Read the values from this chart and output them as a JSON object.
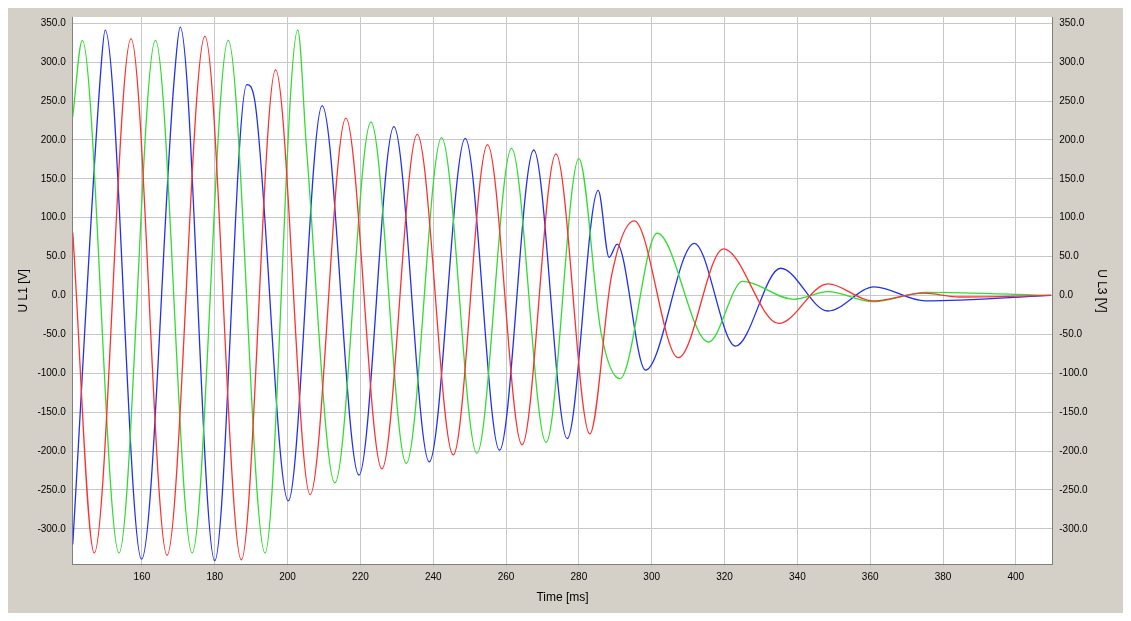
{
  "chart_data": {
    "type": "line",
    "xlabel": "Time [ms]",
    "ylabel": "U L1 [V]",
    "y2label": "U L3 [V]",
    "xlim": [
      141,
      410
    ],
    "xticks": [
      160,
      180,
      200,
      220,
      240,
      260,
      280,
      300,
      320,
      340,
      360,
      380,
      400
    ],
    "ylim": [
      -346,
      358
    ],
    "yticks": [
      {
        "value": 350,
        "label": "350.0"
      },
      {
        "value": 300,
        "label": "300.0"
      },
      {
        "value": 250,
        "label": "250.0"
      },
      {
        "value": 200,
        "label": "200.0"
      },
      {
        "value": 150,
        "label": "150.0"
      },
      {
        "value": 100,
        "label": "100.0"
      },
      {
        "value": 50,
        "label": "50.0"
      },
      {
        "value": 0,
        "label": "0.0"
      },
      {
        "value": -50,
        "label": "-50.0"
      },
      {
        "value": -100,
        "label": "-100.0"
      },
      {
        "value": -150,
        "label": "-150.0"
      },
      {
        "value": -200,
        "label": "-200.0"
      },
      {
        "value": -250,
        "label": "-250.0"
      },
      {
        "value": -300,
        "label": "-300.0"
      }
    ],
    "y2lim": [
      -346,
      358
    ],
    "y2ticks": [
      {
        "value": 350,
        "label": "350.0"
      },
      {
        "value": 300,
        "label": "300.0"
      },
      {
        "value": 250,
        "label": "250.0"
      },
      {
        "value": 200,
        "label": "200.0"
      },
      {
        "value": 150,
        "label": "150.0"
      },
      {
        "value": 100,
        "label": "100.0"
      },
      {
        "value": 50,
        "label": "50.0"
      },
      {
        "value": 0,
        "label": "0.0"
      },
      {
        "value": -50,
        "label": "-50.0"
      },
      {
        "value": -100,
        "label": "-100.0"
      },
      {
        "value": -150,
        "label": "-150.0"
      },
      {
        "value": -200,
        "label": "-200.0"
      },
      {
        "value": -250,
        "label": "-250.0"
      },
      {
        "value": -300,
        "label": "-300.0"
      }
    ],
    "grid": true,
    "legend": false,
    "marker": "none",
    "line_style": "solid",
    "series": [
      {
        "color": "#ff3030",
        "x": [
          141.0,
          146.9,
          157.0,
          166.9,
          177.3,
          187.3,
          196.7,
          206.2,
          216.0,
          225.9,
          235.6,
          245.5,
          254.9,
          264.4,
          273.7,
          283.0,
          289.0,
          295.2,
          307.3,
          319.7,
          334.9,
          348.4,
          360.6,
          374.6,
          384.6,
          409.7
        ],
        "values": [
          81,
          -331,
          330,
          -334,
          333,
          -340,
          290,
          -256,
          228,
          -223,
          207,
          -205,
          194,
          -192,
          182,
          -178,
          26,
          96,
          -80,
          60,
          -36,
          15,
          -7,
          3,
          -2,
          0
        ]
      },
      {
        "color": "#30dd30",
        "x": [
          141.0,
          143.6,
          153.7,
          163.7,
          173.8,
          183.7,
          193.8,
          202.8,
          205.2,
          213.0,
          222.9,
          232.6,
          242.3,
          252.0,
          261.5,
          271.0,
          280.0,
          286.1,
          291.3,
          301.5,
          315.6,
          325.0,
          339.0,
          348.4,
          360.6,
          375.4,
          409.7
        ],
        "values": [
          230,
          328,
          -331,
          328,
          -331,
          328,
          -331,
          341,
          189,
          -241,
          223,
          -216,
          203,
          -203,
          189,
          -189,
          176,
          -48,
          -107,
          80,
          -60,
          18,
          -5,
          5,
          -8,
          4,
          0
        ]
      },
      {
        "color": "#2030f0",
        "x": [
          141.0,
          148.7,
          149.9,
          159.9,
          168.9,
          170.5,
          180.0,
          188.8,
          191.0,
          200.2,
          209.5,
          219.6,
          229.2,
          238.9,
          248.8,
          258.2,
          267.6,
          276.8,
          285.3,
          288.3,
          290.5,
          298.3,
          311.7,
          323.0,
          335.4,
          348.4,
          361.1,
          375.1,
          409.7
        ],
        "values": [
          -320,
          289,
          341,
          -339,
          280,
          345,
          -341,
          271,
          250,
          -264,
          244,
          -231,
          217,
          -214,
          202,
          -199,
          187,
          -184,
          135,
          49,
          66,
          -96,
          67,
          -65,
          35,
          -20,
          11,
          -7,
          0
        ]
      }
    ]
  }
}
